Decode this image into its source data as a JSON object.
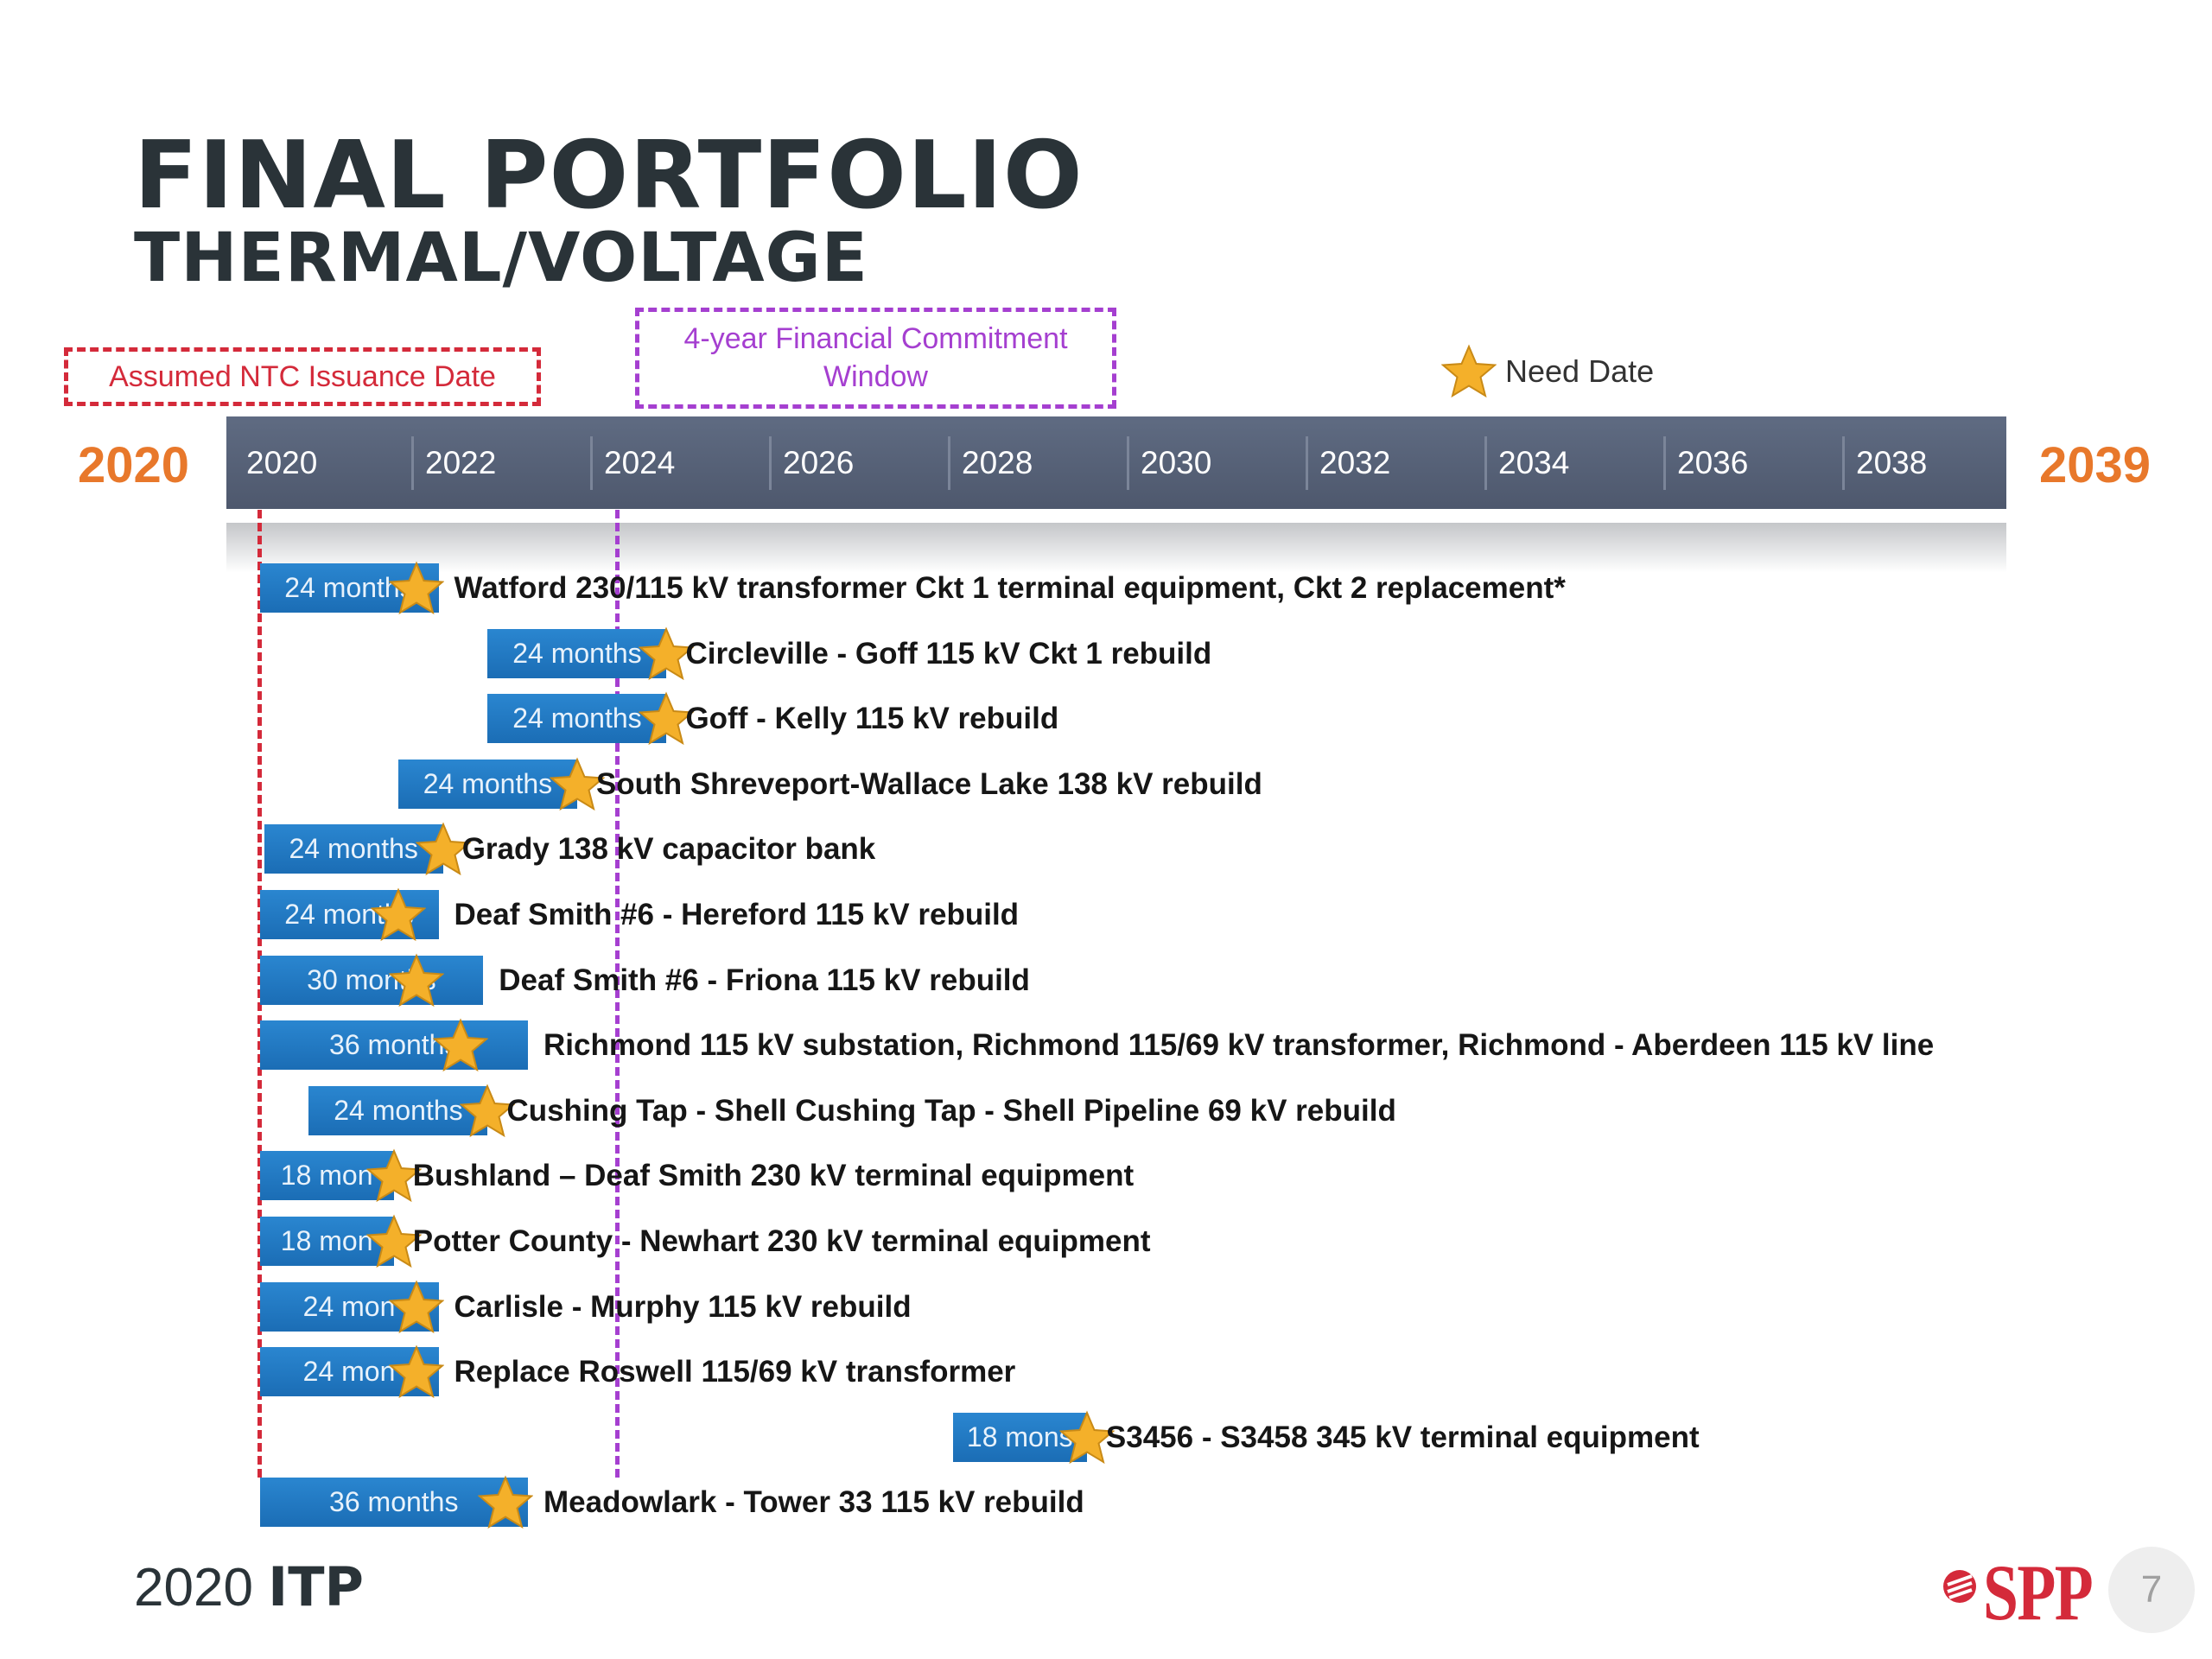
{
  "title": "FINAL PORTFOLIO",
  "subtitle": "THERMAL/VOLTAGE",
  "legend": {
    "ntc_label": "Assumed NTC Issuance Date",
    "window_label_line1": "4-year Financial Commitment",
    "window_label_line2": "Window",
    "need_date_label": "Need Date"
  },
  "footer": {
    "prefix": "2020 ",
    "bold": "ITP",
    "logo": "SPP",
    "page": "7"
  },
  "colors": {
    "bar": "#1f78c1",
    "ntc_line": "#d42a3a",
    "window_line": "#a53fd0",
    "star": "#f4b02a",
    "axis_band": "#566075",
    "year_end": "#e8782b"
  },
  "chart_data": {
    "type": "gantt",
    "axis": {
      "start_label": "2020",
      "end_label": "2039",
      "ticks": [
        "2020",
        "2022",
        "2024",
        "2026",
        "2028",
        "2030",
        "2032",
        "2034",
        "2036",
        "2038"
      ],
      "range": [
        2020,
        2030
      ]
    },
    "ntc_date": 2020.15,
    "window_start": 2024.15,
    "rows": [
      {
        "bar_label": "24 months",
        "start": 2020.15,
        "end": 2022.15,
        "need": 2021.9,
        "label": "Watford 230/115 kV transformer Ckt 1 terminal equipment, Ckt 2 replacement*"
      },
      {
        "bar_label": "24 months",
        "start": 2022.7,
        "end": 2024.7,
        "need": 2024.7,
        "label": "Circleville - Goff 115 kV Ckt 1 rebuild"
      },
      {
        "bar_label": "24 months",
        "start": 2022.7,
        "end": 2024.7,
        "need": 2024.7,
        "label": "Goff - Kelly 115 kV rebuild"
      },
      {
        "bar_label": "24 months",
        "start": 2021.7,
        "end": 2023.7,
        "need": 2023.7,
        "label": "South Shreveport-Wallace Lake 138 kV rebuild"
      },
      {
        "bar_label": "24 months",
        "start": 2020.2,
        "end": 2022.2,
        "need": 2022.2,
        "label": "Grady 138 kV capacitor bank"
      },
      {
        "bar_label": "24 months",
        "start": 2020.15,
        "end": 2022.15,
        "need": 2021.7,
        "label": "Deaf Smith #6 - Hereford 115 kV rebuild"
      },
      {
        "bar_label": "30 months",
        "start": 2020.15,
        "end": 2022.65,
        "need": 2021.9,
        "label": "Deaf Smith #6 - Friona 115 kV rebuild"
      },
      {
        "bar_label": "36 months",
        "start": 2020.15,
        "end": 2023.15,
        "need": 2022.4,
        "label": "Richmond 115 kV substation, Richmond 115/69 kV transformer, Richmond - Aberdeen 115 kV line"
      },
      {
        "bar_label": "24 months",
        "start": 2020.7,
        "end": 2022.7,
        "need": 2022.7,
        "label": "Cushing Tap - Shell Cushing Tap - Shell Pipeline 69 kV rebuild"
      },
      {
        "bar_label": "18 mon",
        "start": 2020.15,
        "end": 2021.65,
        "need": 2021.65,
        "label": "Bushland – Deaf Smith 230 kV terminal equipment"
      },
      {
        "bar_label": "18 mon",
        "start": 2020.15,
        "end": 2021.65,
        "need": 2021.65,
        "label": "Potter County - Newhart 230 kV terminal equipment"
      },
      {
        "bar_label": "24 mon",
        "start": 2020.15,
        "end": 2022.15,
        "need": 2021.9,
        "label": "Carlisle - Murphy 115 kV rebuild"
      },
      {
        "bar_label": "24 mon",
        "start": 2020.15,
        "end": 2022.15,
        "need": 2021.9,
        "label": "Replace Roswell 115/69 kV transformer"
      },
      {
        "bar_label": "18 mons",
        "start": 2027.9,
        "end": 2029.4,
        "need": 2029.4,
        "label": "S3456 - S3458 345 kV terminal equipment"
      },
      {
        "bar_label": "36 months",
        "start": 2020.15,
        "end": 2023.15,
        "need": 2022.9,
        "label": "Meadowlark - Tower 33 115 kV rebuild"
      }
    ]
  }
}
